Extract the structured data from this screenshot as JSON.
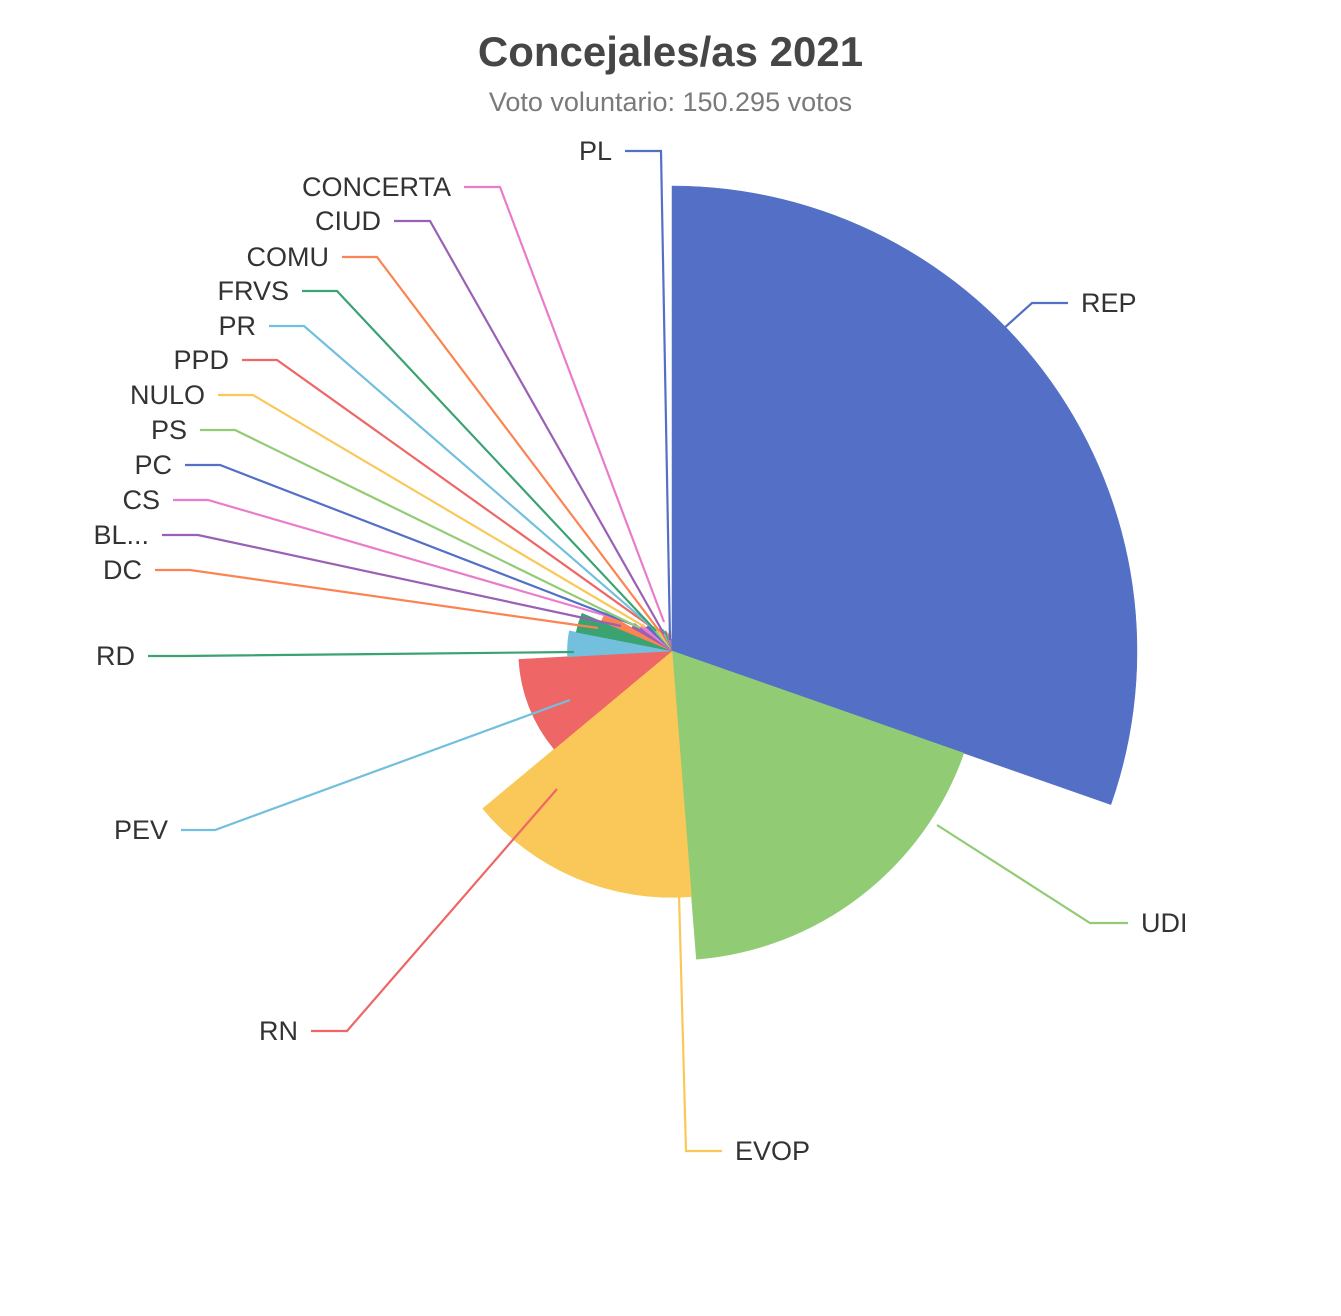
{
  "chart_data": {
    "type": "pie",
    "variant": "nightingale-rose",
    "title": "Concejales/as 2021",
    "subtitle": "Voto voluntario: 150.295 votos",
    "legend": "none",
    "slices": [
      {
        "label": "REP",
        "angle_fraction": 0.2535,
        "radius_fraction": 1.0,
        "color": "#5470c6"
      },
      {
        "label": "UDI",
        "angle_fraction": 0.1535,
        "radius_fraction": 0.665,
        "color": "#91cc75"
      },
      {
        "label": "EVOP",
        "angle_fraction": 0.127,
        "radius_fraction": 0.53,
        "color": "#fac858"
      },
      {
        "label": "RN",
        "angle_fraction": 0.085,
        "radius_fraction": 0.33,
        "color": "#ee6666"
      },
      {
        "label": "PEV",
        "angle_fraction": 0.033,
        "radius_fraction": 0.225,
        "color": "#73c0de"
      },
      {
        "label": "RD",
        "angle_fraction": 0.027,
        "radius_fraction": 0.21,
        "color": "#3ba272"
      },
      {
        "label": "DC",
        "angle_fraction": 0.017,
        "radius_fraction": 0.165,
        "color": "#fc8452"
      },
      {
        "label": "BL...",
        "angle_fraction": 0.015,
        "radius_fraction": 0.1,
        "color": "#9a60b4"
      },
      {
        "label": "CS",
        "angle_fraction": 0.014,
        "radius_fraction": 0.085,
        "color": "#ea7ccc"
      },
      {
        "label": "PC",
        "angle_fraction": 0.013,
        "radius_fraction": 0.075,
        "color": "#5470c6"
      },
      {
        "label": "PS",
        "angle_fraction": 0.013,
        "radius_fraction": 0.065,
        "color": "#91cc75"
      },
      {
        "label": "NULO",
        "angle_fraction": 0.012,
        "radius_fraction": 0.06,
        "color": "#fac858"
      },
      {
        "label": "PPD",
        "angle_fraction": 0.012,
        "radius_fraction": 0.055,
        "color": "#ee6666"
      },
      {
        "label": "PR",
        "angle_fraction": 0.011,
        "radius_fraction": 0.05,
        "color": "#73c0de"
      },
      {
        "label": "FRVS",
        "angle_fraction": 0.011,
        "radius_fraction": 0.045,
        "color": "#3ba272"
      },
      {
        "label": "COMU",
        "angle_fraction": 0.01,
        "radius_fraction": 0.04,
        "color": "#fc8452"
      },
      {
        "label": "CIUD",
        "angle_fraction": 0.01,
        "radius_fraction": 0.035,
        "color": "#9a60b4"
      },
      {
        "label": "CONCERTA",
        "angle_fraction": 0.0105,
        "radius_fraction": 0.045,
        "color": "#ea7ccc"
      },
      {
        "label": "PL",
        "angle_fraction": 0.0075,
        "radius_fraction": 0.025,
        "color": "#5470c6"
      }
    ]
  }
}
